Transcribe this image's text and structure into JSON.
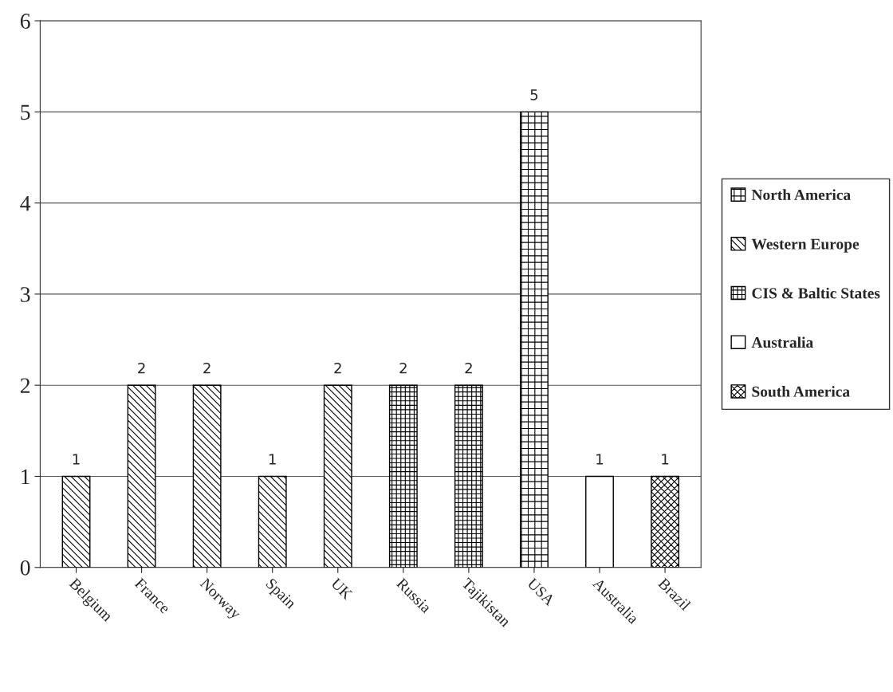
{
  "chart_data": {
    "type": "bar",
    "categories": [
      "Belgium",
      "France",
      "Norway",
      "Spain",
      "UK",
      "Russia",
      "Tajikistan",
      "USA",
      "Australia",
      "Brazil"
    ],
    "series": [
      {
        "name": "North America",
        "color": "#000000",
        "values": [
          null,
          null,
          null,
          null,
          null,
          null,
          null,
          5,
          null,
          null
        ]
      },
      {
        "name": "Western Europe",
        "color": "#000000",
        "values": [
          1,
          2,
          2,
          1,
          2,
          null,
          null,
          null,
          null,
          null
        ]
      },
      {
        "name": "CIS & Baltic States",
        "color": "#000000",
        "values": [
          null,
          null,
          null,
          null,
          null,
          2,
          2,
          null,
          null,
          null
        ]
      },
      {
        "name": "Australia",
        "color": "#000000",
        "values": [
          null,
          null,
          null,
          null,
          null,
          null,
          null,
          null,
          1,
          null
        ]
      },
      {
        "name": "South America",
        "color": "#000000",
        "values": [
          null,
          null,
          null,
          null,
          null,
          null,
          null,
          null,
          null,
          1
        ]
      }
    ],
    "ylim": [
      0,
      6
    ],
    "yticks": [
      0,
      1,
      2,
      3,
      4,
      5,
      6
    ],
    "grid": "y",
    "legend": "right",
    "data_labels": true
  }
}
